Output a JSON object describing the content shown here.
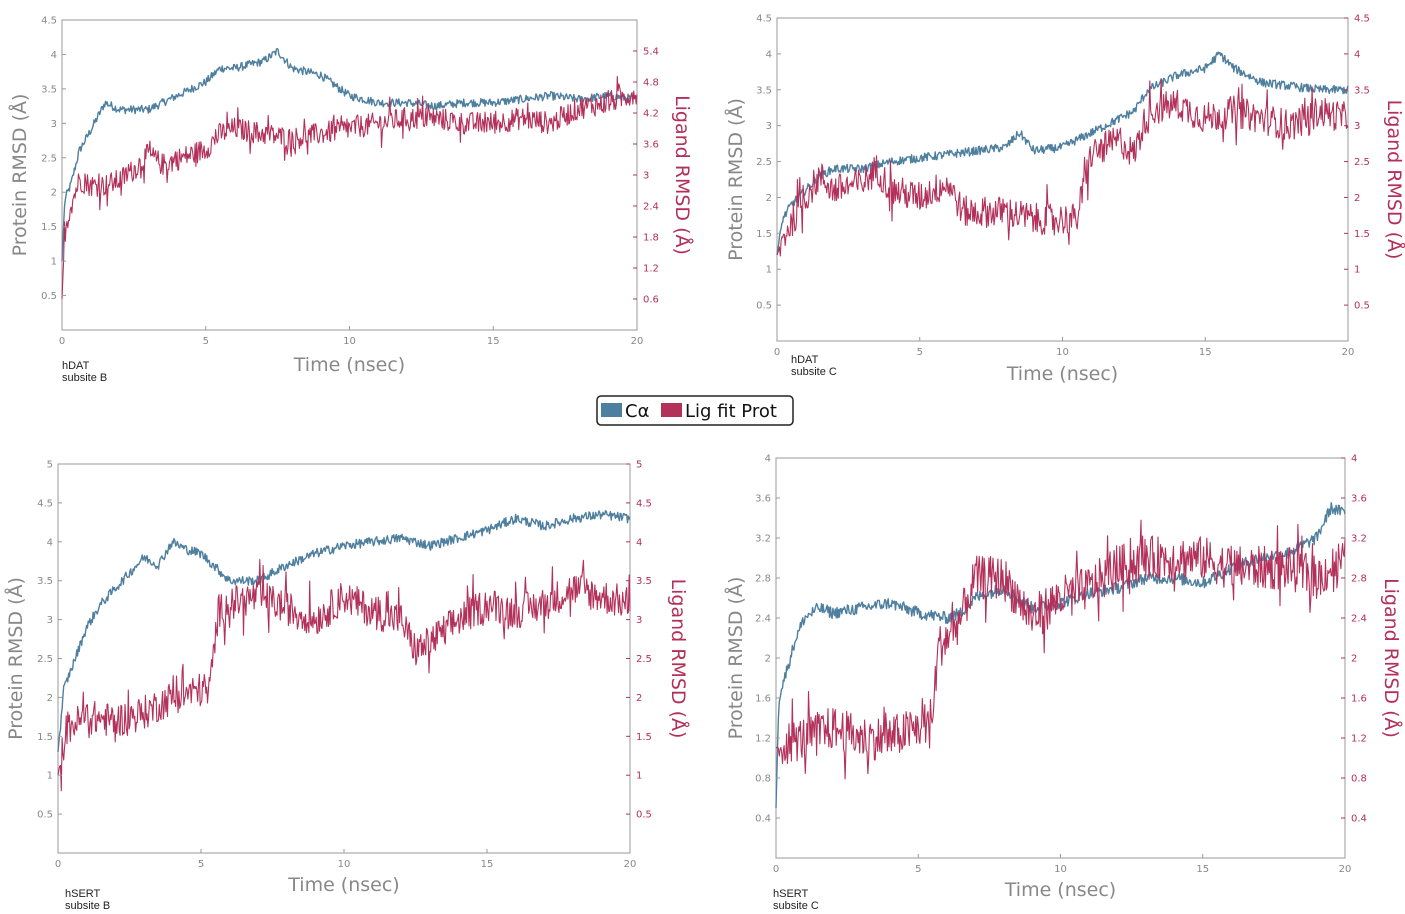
{
  "legend": {
    "items": [
      {
        "label": "Cα",
        "color": "#4f7f9f"
      },
      {
        "label": "Lig fit Prot",
        "color": "#b3305a"
      }
    ]
  },
  "colors": {
    "protein": "#4f7f9f",
    "ligand": "#b3305a",
    "axis_left": "#888888",
    "axis_right": "#b3305a"
  },
  "chart_data": [
    {
      "type": "line",
      "system": "hDAT",
      "subsite": "subsite B",
      "xlabel": "Time (nsec)",
      "ylabel_left": "Protein RMSD (Å)",
      "ylabel_right": "Ligand RMSD (Å)",
      "xlim": [
        0,
        20
      ],
      "xticks": [
        0,
        5,
        10,
        15,
        20
      ],
      "ylim_left": [
        0,
        4.5
      ],
      "yticks_left": [
        0.5,
        1.0,
        1.5,
        2.0,
        2.5,
        3.0,
        3.5,
        4.0,
        4.5
      ],
      "ylim_right": [
        0,
        6.0
      ],
      "yticks_right": [
        0.6,
        1.2,
        1.8,
        2.4,
        3.0,
        3.6,
        4.2,
        4.8,
        5.4
      ],
      "series": [
        {
          "name": "Cα",
          "axis": "left",
          "x": [
            0,
            0.1,
            0.3,
            0.6,
            1.0,
            1.5,
            2.0,
            3.0,
            4.0,
            5.0,
            5.5,
            6.0,
            7.0,
            7.5,
            8.0,
            9.0,
            10.0,
            11.0,
            12.0,
            13.0,
            14.0,
            15.0,
            16.0,
            17.0,
            18.0,
            19.0,
            20.0
          ],
          "y": [
            1.0,
            1.9,
            2.1,
            2.6,
            2.9,
            3.3,
            3.2,
            3.2,
            3.4,
            3.6,
            3.8,
            3.8,
            3.9,
            4.05,
            3.8,
            3.7,
            3.4,
            3.3,
            3.3,
            3.25,
            3.3,
            3.3,
            3.35,
            3.4,
            3.35,
            3.4,
            3.35
          ]
        },
        {
          "name": "Lig fit Prot",
          "axis": "right",
          "x": [
            0,
            0.1,
            0.3,
            0.6,
            1.0,
            1.5,
            2.0,
            2.5,
            3.0,
            3.5,
            4.0,
            4.5,
            5.0,
            5.5,
            6.0,
            7.0,
            8.0,
            9.0,
            10.0,
            11.0,
            12.0,
            13.0,
            14.0,
            15.0,
            16.0,
            17.0,
            18.0,
            19.0,
            20.0
          ],
          "y": [
            0.6,
            1.9,
            2.4,
            2.9,
            2.8,
            2.8,
            2.9,
            3.1,
            3.4,
            3.2,
            3.3,
            3.4,
            3.5,
            3.8,
            3.9,
            3.8,
            3.7,
            3.8,
            3.9,
            4.0,
            4.1,
            4.1,
            4.0,
            4.0,
            4.1,
            4.0,
            4.3,
            4.4,
            4.6
          ]
        }
      ]
    },
    {
      "type": "line",
      "system": "hDAT",
      "subsite": "subsite C",
      "xlabel": "Time (nsec)",
      "ylabel_left": "Protein RMSD (Å)",
      "ylabel_right": "Ligand RMSD (Å)",
      "xlim": [
        0,
        20
      ],
      "xticks": [
        0,
        5,
        10,
        15,
        20
      ],
      "ylim_left": [
        0,
        4.5
      ],
      "yticks_left": [
        0.5,
        1.0,
        1.5,
        2.0,
        2.5,
        3.0,
        3.5,
        4.0,
        4.5
      ],
      "ylim_right": [
        0,
        4.5
      ],
      "yticks_right": [
        0.5,
        1.0,
        1.5,
        2.0,
        2.5,
        3.0,
        3.5,
        4.0,
        4.5
      ],
      "series": [
        {
          "name": "Cα",
          "axis": "left",
          "x": [
            0,
            0.2,
            0.5,
            1.0,
            1.5,
            2.0,
            3.0,
            4.0,
            5.0,
            6.0,
            7.0,
            8.0,
            8.5,
            9.0,
            10.0,
            10.5,
            11.0,
            12.0,
            12.5,
            13.0,
            14.0,
            15.0,
            15.5,
            16.0,
            17.0,
            18.0,
            19.0,
            20.0
          ],
          "y": [
            1.2,
            1.7,
            1.9,
            2.1,
            2.3,
            2.4,
            2.4,
            2.5,
            2.55,
            2.6,
            2.65,
            2.7,
            2.9,
            2.65,
            2.7,
            2.8,
            2.9,
            3.1,
            3.2,
            3.5,
            3.7,
            3.8,
            4.0,
            3.8,
            3.6,
            3.55,
            3.5,
            3.5
          ]
        },
        {
          "name": "Lig fit Prot",
          "axis": "right",
          "x": [
            0,
            0.3,
            0.7,
            1.0,
            1.5,
            2.0,
            3.0,
            3.5,
            4.0,
            5.0,
            6.0,
            6.5,
            7.0,
            8.0,
            9.0,
            10.0,
            10.5,
            11.0,
            12.0,
            12.5,
            13.0,
            14.0,
            15.0,
            16.0,
            17.0,
            18.0,
            19.0,
            20.0
          ],
          "y": [
            1.2,
            1.5,
            1.8,
            2.0,
            2.3,
            2.1,
            2.2,
            2.4,
            2.1,
            2.0,
            2.2,
            1.8,
            1.8,
            1.8,
            1.7,
            1.7,
            1.7,
            2.6,
            2.8,
            2.6,
            3.2,
            3.3,
            3.1,
            3.2,
            3.1,
            3.0,
            3.2,
            3.1
          ]
        }
      ]
    },
    {
      "type": "line",
      "system": "hSERT",
      "subsite": "subsite B",
      "xlabel": "Time (nsec)",
      "ylabel_left": "Protein RMSD (Å)",
      "ylabel_right": "Ligand RMSD (Å)",
      "xlim": [
        0,
        20
      ],
      "xticks": [
        0,
        5,
        10,
        15,
        20
      ],
      "ylim_left": [
        0,
        5.0
      ],
      "yticks_left": [
        0.5,
        1.0,
        1.5,
        2.0,
        2.5,
        3.0,
        3.5,
        4.0,
        4.5,
        5.0
      ],
      "ylim_right": [
        0,
        5.0
      ],
      "yticks_right": [
        0.5,
        1.0,
        1.5,
        2.0,
        2.5,
        3.0,
        3.5,
        4.0,
        4.5,
        5.0
      ],
      "series": [
        {
          "name": "Cα",
          "axis": "left",
          "x": [
            0,
            0.2,
            0.5,
            1.0,
            1.5,
            2.0,
            2.5,
            3.0,
            3.5,
            4.0,
            4.5,
            5.0,
            6.0,
            7.0,
            8.0,
            9.0,
            10.0,
            11.0,
            12.0,
            13.0,
            14.0,
            15.0,
            16.0,
            17.0,
            18.0,
            19.0,
            20.0
          ],
          "y": [
            1.3,
            2.1,
            2.4,
            2.9,
            3.2,
            3.4,
            3.6,
            3.8,
            3.7,
            4.0,
            3.9,
            3.85,
            3.5,
            3.5,
            3.7,
            3.85,
            3.95,
            4.0,
            4.05,
            3.95,
            4.05,
            4.15,
            4.3,
            4.2,
            4.3,
            4.35,
            4.3
          ]
        },
        {
          "name": "Lig fit Prot",
          "axis": "right",
          "x": [
            0,
            0.3,
            1.0,
            2.0,
            3.0,
            4.0,
            5.0,
            5.3,
            5.6,
            6.0,
            7.0,
            8.0,
            9.0,
            10.0,
            11.0,
            12.0,
            12.5,
            13.0,
            14.0,
            15.0,
            16.0,
            17.0,
            18.0,
            19.0,
            20.0
          ],
          "y": [
            1.0,
            1.6,
            1.75,
            1.7,
            1.8,
            2.0,
            2.1,
            2.1,
            3.1,
            3.2,
            3.3,
            3.15,
            3.0,
            3.3,
            3.1,
            3.0,
            2.6,
            2.7,
            3.0,
            3.2,
            3.1,
            3.2,
            3.4,
            3.3,
            3.2
          ]
        }
      ]
    },
    {
      "type": "line",
      "system": "hSERT",
      "subsite": "subsite C",
      "xlabel": "Time (nsec)",
      "ylabel_left": "Protein RMSD (Å)",
      "ylabel_right": "Ligand RMSD (Å)",
      "xlim": [
        0,
        20
      ],
      "xticks": [
        0,
        5,
        10,
        15,
        20
      ],
      "ylim_left": [
        0,
        4.0
      ],
      "yticks_left": [
        0.4,
        0.8,
        1.2,
        1.6,
        2.0,
        2.4,
        2.8,
        3.2,
        3.6,
        4.0
      ],
      "ylim_right": [
        0,
        4.0
      ],
      "yticks_right": [
        0.4,
        0.8,
        1.2,
        1.6,
        2.0,
        2.4,
        2.8,
        3.2,
        3.6,
        4.0
      ],
      "series": [
        {
          "name": "Cα",
          "axis": "left",
          "x": [
            0,
            0.1,
            0.3,
            0.7,
            1.0,
            1.5,
            2.0,
            3.0,
            4.0,
            5.0,
            6.0,
            6.5,
            7.0,
            8.0,
            9.0,
            10.0,
            11.0,
            12.0,
            13.0,
            14.0,
            15.0,
            16.0,
            17.0,
            18.0,
            19.0,
            19.5,
            20.0
          ],
          "y": [
            0.5,
            1.6,
            1.8,
            2.2,
            2.4,
            2.5,
            2.45,
            2.5,
            2.55,
            2.45,
            2.4,
            2.45,
            2.6,
            2.7,
            2.5,
            2.55,
            2.65,
            2.7,
            2.8,
            2.8,
            2.75,
            2.9,
            3.0,
            3.05,
            3.2,
            3.5,
            3.45
          ]
        },
        {
          "name": "Lig fit Prot",
          "axis": "right",
          "x": [
            0,
            0.3,
            1.0,
            2.0,
            3.0,
            4.0,
            5.0,
            5.5,
            5.7,
            6.0,
            6.5,
            7.0,
            8.0,
            8.5,
            9.0,
            10.0,
            11.0,
            12.0,
            13.0,
            14.0,
            15.0,
            16.0,
            17.0,
            18.0,
            19.0,
            20.0
          ],
          "y": [
            1.1,
            1.15,
            1.2,
            1.3,
            1.2,
            1.2,
            1.3,
            1.4,
            2.1,
            2.2,
            2.4,
            2.8,
            2.8,
            2.6,
            2.4,
            2.6,
            2.7,
            2.9,
            3.0,
            3.0,
            3.0,
            2.9,
            2.9,
            2.9,
            2.8,
            3.0
          ]
        }
      ]
    }
  ]
}
